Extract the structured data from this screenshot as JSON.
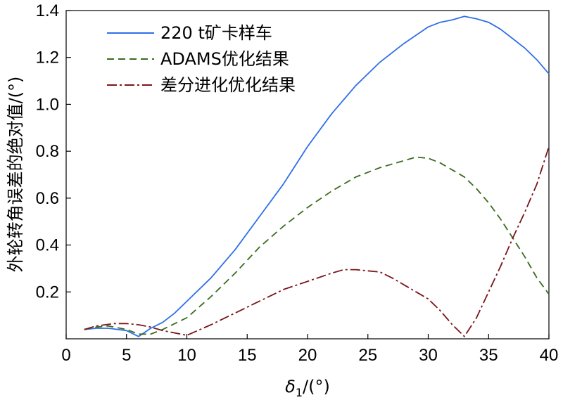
{
  "chart_data": {
    "type": "line",
    "xlabel": {
      "symbol": "δ",
      "subscript": "1",
      "unit": "/(°)"
    },
    "ylabel": "外轮转角误差的绝对值/(°)",
    "xlim": [
      0,
      40
    ],
    "ylim": [
      0,
      1.4
    ],
    "xticks": [
      "0",
      "5",
      "10",
      "15",
      "20",
      "25",
      "30",
      "35",
      "40"
    ],
    "yticks": [
      "0.2",
      "0.4",
      "0.6",
      "0.8",
      "1.0",
      "1.2",
      "1.4"
    ],
    "legend_position": "top-left",
    "grid": false,
    "series": [
      {
        "name": "220 t矿卡样车",
        "color": "#2e6fe8",
        "dash": "solid",
        "points": [
          [
            1.5,
            0.04
          ],
          [
            2.5,
            0.045
          ],
          [
            3.5,
            0.045
          ],
          [
            5,
            0.035
          ],
          [
            6,
            0.01
          ],
          [
            7,
            0.045
          ],
          [
            8,
            0.07
          ],
          [
            9,
            0.11
          ],
          [
            10,
            0.16
          ],
          [
            12,
            0.26
          ],
          [
            14,
            0.38
          ],
          [
            16,
            0.52
          ],
          [
            18,
            0.66
          ],
          [
            20,
            0.82
          ],
          [
            22,
            0.96
          ],
          [
            24,
            1.08
          ],
          [
            26,
            1.18
          ],
          [
            28,
            1.26
          ],
          [
            30,
            1.33
          ],
          [
            31,
            1.35
          ],
          [
            32,
            1.36
          ],
          [
            33,
            1.375
          ],
          [
            34,
            1.365
          ],
          [
            35,
            1.35
          ],
          [
            36,
            1.32
          ],
          [
            37,
            1.28
          ],
          [
            38,
            1.24
          ],
          [
            39,
            1.19
          ],
          [
            40,
            1.13
          ]
        ]
      },
      {
        "name": "ADAMS优化结果",
        "color": "#3a6b1f",
        "dash": "dashed",
        "points": [
          [
            1.5,
            0.04
          ],
          [
            2.5,
            0.05
          ],
          [
            3.5,
            0.055
          ],
          [
            5,
            0.04
          ],
          [
            6,
            0.02
          ],
          [
            7,
            0.02
          ],
          [
            8,
            0.04
          ],
          [
            10,
            0.09
          ],
          [
            12,
            0.18
          ],
          [
            14,
            0.28
          ],
          [
            16,
            0.39
          ],
          [
            18,
            0.48
          ],
          [
            20,
            0.56
          ],
          [
            22,
            0.63
          ],
          [
            24,
            0.69
          ],
          [
            26,
            0.73
          ],
          [
            28,
            0.76
          ],
          [
            29,
            0.775
          ],
          [
            30,
            0.77
          ],
          [
            31,
            0.75
          ],
          [
            32,
            0.72
          ],
          [
            33,
            0.69
          ],
          [
            34,
            0.64
          ],
          [
            35,
            0.58
          ],
          [
            36,
            0.51
          ],
          [
            37,
            0.43
          ],
          [
            38,
            0.35
          ],
          [
            39,
            0.26
          ],
          [
            40,
            0.19
          ]
        ]
      },
      {
        "name": "差分进化优化结果",
        "color": "#7b1518",
        "dash": "dashdot",
        "points": [
          [
            1.5,
            0.04
          ],
          [
            2.5,
            0.055
          ],
          [
            4,
            0.065
          ],
          [
            5,
            0.065
          ],
          [
            6,
            0.06
          ],
          [
            7,
            0.05
          ],
          [
            8,
            0.035
          ],
          [
            10,
            0.015
          ],
          [
            12,
            0.06
          ],
          [
            14,
            0.11
          ],
          [
            16,
            0.16
          ],
          [
            18,
            0.21
          ],
          [
            20,
            0.245
          ],
          [
            22,
            0.28
          ],
          [
            23,
            0.295
          ],
          [
            24,
            0.295
          ],
          [
            25,
            0.29
          ],
          [
            26,
            0.285
          ],
          [
            27,
            0.26
          ],
          [
            28,
            0.23
          ],
          [
            29,
            0.2
          ],
          [
            30,
            0.17
          ],
          [
            31,
            0.12
          ],
          [
            32,
            0.06
          ],
          [
            33,
            0.01
          ],
          [
            34,
            0.09
          ],
          [
            35,
            0.2
          ],
          [
            36,
            0.31
          ],
          [
            37,
            0.43
          ],
          [
            38,
            0.54
          ],
          [
            39,
            0.66
          ],
          [
            40,
            0.82
          ]
        ]
      }
    ]
  }
}
